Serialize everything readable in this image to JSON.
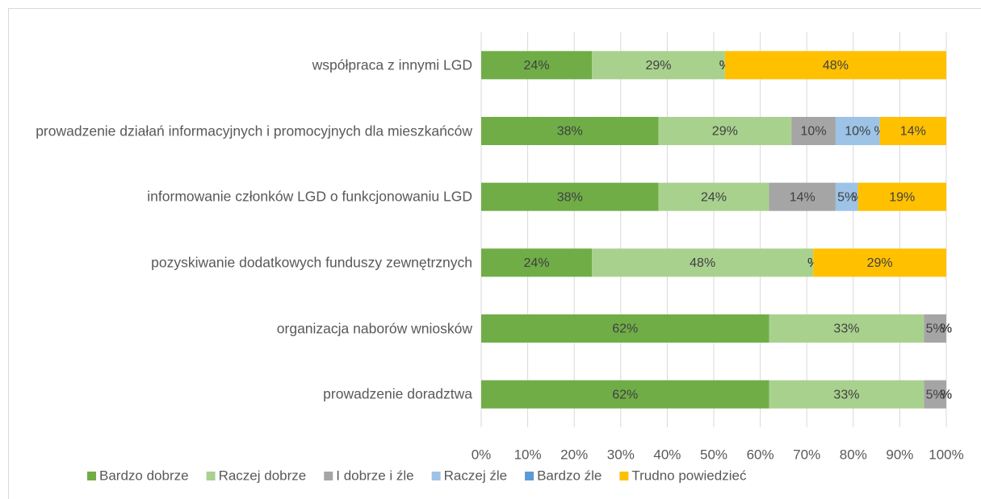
{
  "chart_data": {
    "type": "bar",
    "orientation": "horizontal",
    "stacked": true,
    "categories": [
      "współpraca z innymi LGD",
      "prowadzenie działań informacyjnych i promocyjnych dla mieszkańców",
      "informowanie członków LGD o funkcjonowaniu LGD",
      "pozyskiwanie dodatkowych funduszy zewnętrznych",
      "organizacja naborów wniosków",
      "prowadzenie doradztwa"
    ],
    "series": [
      {
        "name": "Bardzo dobrze",
        "color": "#70ad47",
        "values": [
          23.8,
          38.1,
          38.1,
          23.8,
          61.9,
          61.9
        ],
        "value_labels": [
          "24%",
          "38%",
          "38%",
          "24%",
          "62%",
          "62%"
        ]
      },
      {
        "name": "Raczej dobrze",
        "color": "#a9d18e",
        "values": [
          28.6,
          28.6,
          23.8,
          47.6,
          33.3,
          33.3
        ],
        "value_labels": [
          "29%",
          "29%",
          "24%",
          "48%",
          "33%",
          "33%"
        ]
      },
      {
        "name": "I dobrze i źle",
        "color": "#a5a5a5",
        "values": [
          0,
          9.5,
          14.3,
          0,
          4.8,
          4.8
        ],
        "value_labels": [
          "%",
          "10%",
          "14%",
          "%",
          "5%",
          "5%"
        ]
      },
      {
        "name": "Raczej źle",
        "color": "#9dc3e6",
        "values": [
          0,
          9.5,
          4.8,
          0,
          0,
          0
        ],
        "value_labels": [
          "%",
          "10%",
          "5%",
          "%",
          "%",
          "%"
        ]
      },
      {
        "name": "Bardzo źle",
        "color": "#5b9bd5",
        "values": [
          0,
          0,
          0,
          0,
          0,
          0
        ],
        "value_labels": [
          "%",
          "%",
          "%",
          "%",
          "%",
          "%"
        ]
      },
      {
        "name": "Trudno powiedzieć",
        "color": "#ffc000",
        "values": [
          47.6,
          14.3,
          19.0,
          28.6,
          0,
          0
        ],
        "value_labels": [
          "48%",
          "14%",
          "19%",
          "29%",
          "%",
          "%"
        ]
      }
    ],
    "xlim": [
      0,
      100
    ],
    "xticks": [
      {
        "value": 0,
        "label": "0%"
      },
      {
        "value": 10,
        "label": "10%"
      },
      {
        "value": 20,
        "label": "20%"
      },
      {
        "value": 30,
        "label": "30%"
      },
      {
        "value": 40,
        "label": "40%"
      },
      {
        "value": 50,
        "label": "50%"
      },
      {
        "value": 60,
        "label": "60%"
      },
      {
        "value": 70,
        "label": "70%"
      },
      {
        "value": 80,
        "label": "80%"
      },
      {
        "value": 90,
        "label": "90%"
      },
      {
        "value": 100,
        "label": "100%"
      }
    ],
    "grid": true,
    "legend": "bottom"
  }
}
